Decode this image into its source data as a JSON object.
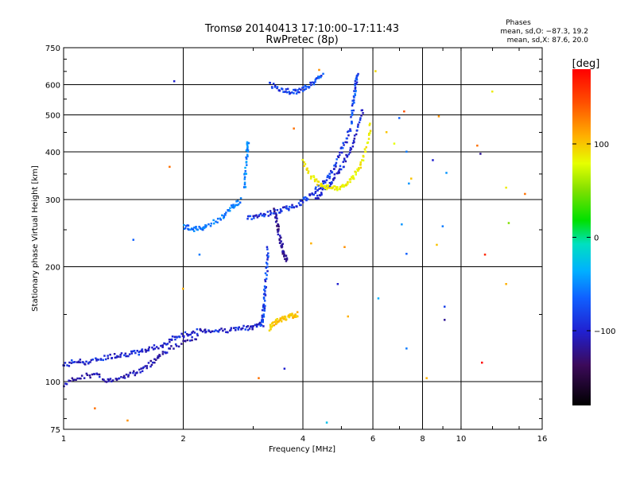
{
  "chart_data": {
    "type": "scatter",
    "title": "Tromsø 20140413 17:10:00–17:11:43",
    "subtitle": "RwPretec (8p)",
    "phase_stats": {
      "heading": "Phases",
      "o_line": "mean, sd,O: −87.3, 19.2",
      "x_line": "mean, sd,X:  87.6, 20.0"
    },
    "xlabel": "Frequency [MHz]",
    "ylabel": "Stationary phase Virtual Height [km]",
    "x_scale": "log",
    "y_scale": "log",
    "xlim": [
      1,
      16
    ],
    "ylim": [
      75,
      750
    ],
    "x_ticks": [
      1,
      2,
      4,
      6,
      8,
      10,
      16
    ],
    "x_grid": [
      2,
      4,
      6,
      8,
      10
    ],
    "y_ticks": [
      75,
      100,
      200,
      300,
      400,
      500,
      600,
      750
    ],
    "grid": true,
    "colorbar": {
      "label": "[deg]",
      "min": -180,
      "max": 180,
      "ticks": [
        100,
        0,
        -100
      ]
    },
    "traces": [
      {
        "name": "o-low-blue",
        "phase": -110,
        "x": [
          1.0,
          1.08,
          1.15,
          1.25,
          1.35,
          1.45,
          1.55,
          1.65,
          1.8,
          1.9,
          2.0,
          2.15,
          2.3,
          2.5,
          2.7,
          2.9,
          3.05,
          3.2
        ],
        "y": [
          110,
          113,
          112,
          115,
          117,
          118,
          119,
          122,
          125,
          130,
          132,
          135,
          136,
          136,
          137,
          138,
          140,
          142
        ]
      },
      {
        "name": "o-low-spread",
        "phase": -120,
        "x": [
          1.0,
          1.1,
          1.2,
          1.3,
          1.4,
          1.5,
          1.6,
          1.7,
          1.8,
          2.0,
          2.2
        ],
        "y": [
          98,
          103,
          104,
          100,
          103,
          105,
          108,
          114,
          120,
          126,
          131
        ]
      },
      {
        "name": "e-cusp-low",
        "phase": -100,
        "x": [
          3.15,
          3.18,
          3.2,
          3.22,
          3.25,
          3.27
        ],
        "y": [
          140,
          150,
          160,
          175,
          200,
          225
        ]
      },
      {
        "name": "x-low-orange",
        "phase": 120,
        "x": [
          3.3,
          3.4,
          3.5,
          3.6,
          3.7,
          3.8,
          3.9
        ],
        "y": [
          138,
          142,
          145,
          146,
          148,
          149,
          150
        ]
      },
      {
        "name": "f1-cyan",
        "phase": -80,
        "x": [
          2.0,
          2.1,
          2.2,
          2.3,
          2.5,
          2.6,
          2.7,
          2.8
        ],
        "y": [
          255,
          252,
          250,
          256,
          268,
          280,
          290,
          300
        ]
      },
      {
        "name": "f1-cusp",
        "phase": -75,
        "x": [
          2.85,
          2.88,
          2.9,
          2.92
        ],
        "y": [
          320,
          360,
          400,
          430
        ]
      },
      {
        "name": "f2-o-trace",
        "phase": -105,
        "x": [
          2.9,
          3.1,
          3.3,
          3.5,
          3.7,
          3.9,
          4.1,
          4.3,
          4.5,
          4.7,
          4.9,
          5.1,
          5.3
        ],
        "y": [
          268,
          272,
          276,
          280,
          285,
          292,
          302,
          315,
          330,
          350,
          380,
          420,
          470
        ]
      },
      {
        "name": "f2-o-upper",
        "phase": -110,
        "x": [
          4.3,
          4.5,
          4.7,
          4.9,
          5.1,
          5.3,
          5.5,
          5.7
        ],
        "y": [
          300,
          315,
          330,
          350,
          375,
          410,
          460,
          520
        ]
      },
      {
        "name": "f2-x-yellow",
        "phase": 100,
        "x": [
          4.0,
          4.2,
          4.4,
          4.6,
          4.8,
          5.0,
          5.2,
          5.4,
          5.6,
          5.8,
          5.95
        ],
        "y": [
          375,
          345,
          330,
          322,
          320,
          322,
          330,
          345,
          370,
          410,
          480
        ]
      },
      {
        "name": "spread-f-vertical",
        "phase": -130,
        "x": [
          3.4,
          3.45,
          3.5,
          3.55,
          3.6,
          3.65
        ],
        "y": [
          280,
          260,
          240,
          225,
          215,
          205
        ]
      },
      {
        "name": "high-arc",
        "phase": -100,
        "x": [
          3.3,
          3.5,
          3.7,
          3.9,
          4.1,
          4.3,
          4.5
        ],
        "y": [
          600,
          585,
          575,
          575,
          590,
          610,
          635
        ]
      },
      {
        "name": "f2-x-rise",
        "phase": -95,
        "x": [
          5.3,
          5.35,
          5.4,
          5.45,
          5.5
        ],
        "y": [
          470,
          520,
          570,
          610,
          640
        ]
      }
    ],
    "scatter_points": [
      {
        "x": 1.9,
        "y": 612,
        "phase": -110
      },
      {
        "x": 1.85,
        "y": 365,
        "phase": 150
      },
      {
        "x": 1.5,
        "y": 235,
        "phase": -90
      },
      {
        "x": 2.2,
        "y": 215,
        "phase": -80
      },
      {
        "x": 2.0,
        "y": 175,
        "phase": 130
      },
      {
        "x": 3.8,
        "y": 460,
        "phase": 150
      },
      {
        "x": 4.2,
        "y": 230,
        "phase": 130
      },
      {
        "x": 4.9,
        "y": 180,
        "phase": -110
      },
      {
        "x": 5.1,
        "y": 225,
        "phase": 140
      },
      {
        "x": 7.0,
        "y": 490,
        "phase": -90
      },
      {
        "x": 7.2,
        "y": 510,
        "phase": 160
      },
      {
        "x": 7.3,
        "y": 400,
        "phase": -80
      },
      {
        "x": 7.5,
        "y": 340,
        "phase": 120
      },
      {
        "x": 6.8,
        "y": 420,
        "phase": 90
      },
      {
        "x": 8.5,
        "y": 380,
        "phase": -110
      },
      {
        "x": 8.8,
        "y": 495,
        "phase": 140
      },
      {
        "x": 9.2,
        "y": 352,
        "phase": -70
      },
      {
        "x": 9.0,
        "y": 255,
        "phase": -80
      },
      {
        "x": 8.7,
        "y": 228,
        "phase": 120
      },
      {
        "x": 7.1,
        "y": 258,
        "phase": -70
      },
      {
        "x": 7.3,
        "y": 216,
        "phase": -90
      },
      {
        "x": 7.3,
        "y": 122,
        "phase": -80
      },
      {
        "x": 9.1,
        "y": 157,
        "phase": -100
      },
      {
        "x": 9.1,
        "y": 145,
        "phase": -130
      },
      {
        "x": 11.2,
        "y": 395,
        "phase": -130
      },
      {
        "x": 11.0,
        "y": 415,
        "phase": 150
      },
      {
        "x": 11.5,
        "y": 215,
        "phase": 170
      },
      {
        "x": 11.3,
        "y": 112,
        "phase": 180
      },
      {
        "x": 12.0,
        "y": 575,
        "phase": 100
      },
      {
        "x": 13.0,
        "y": 322,
        "phase": 100
      },
      {
        "x": 13.2,
        "y": 260,
        "phase": 40
      },
      {
        "x": 14.5,
        "y": 310,
        "phase": 150
      },
      {
        "x": 13.0,
        "y": 180,
        "phase": 130
      },
      {
        "x": 5.2,
        "y": 148,
        "phase": 130
      },
      {
        "x": 4.6,
        "y": 78,
        "phase": -50
      },
      {
        "x": 3.6,
        "y": 108,
        "phase": -110
      },
      {
        "x": 3.1,
        "y": 102,
        "phase": 150
      },
      {
        "x": 1.2,
        "y": 85,
        "phase": 150
      },
      {
        "x": 1.45,
        "y": 79,
        "phase": 140
      },
      {
        "x": 8.2,
        "y": 102,
        "phase": 130
      },
      {
        "x": 6.2,
        "y": 165,
        "phase": -60
      },
      {
        "x": 6.5,
        "y": 450,
        "phase": 120
      },
      {
        "x": 4.4,
        "y": 655,
        "phase": 140
      },
      {
        "x": 6.1,
        "y": 650,
        "phase": 110
      },
      {
        "x": 7.4,
        "y": 330,
        "phase": -70
      }
    ]
  }
}
